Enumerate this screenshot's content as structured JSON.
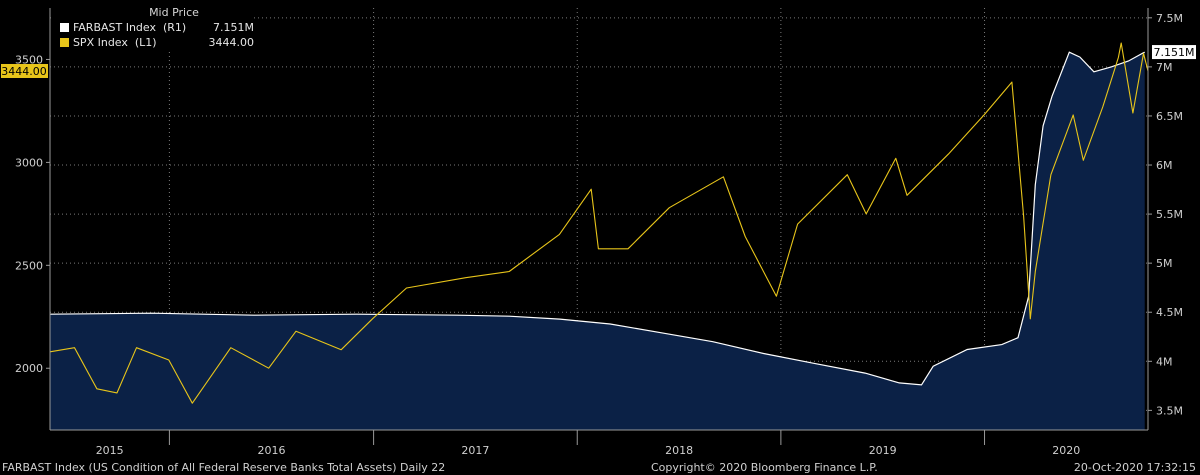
{
  "legend": {
    "header": "Mid Price",
    "items": [
      {
        "label": "FARBAST Index  (R1)",
        "value": "7.151M",
        "color": "#ffffff"
      },
      {
        "label": "SPX Index  (L1)",
        "value": "3444.00",
        "color": "#e8c51a"
      }
    ]
  },
  "footer": {
    "left": "FARBAST Index (US Condition of All Federal Reserve Banks Total Assets)  Daily 22",
    "center": "Copyright© 2020 Bloomberg Finance L.P.",
    "right": "20-Oct-2020 17:32:15"
  },
  "chart_data": {
    "type": "line",
    "x_axis": {
      "tick_labels": [
        "2015",
        "2016",
        "2017",
        "2018",
        "2019",
        "2020"
      ],
      "range": [
        "2015-06-01",
        "2020-10-20"
      ]
    },
    "left_axis": {
      "tick_labels": [
        "2000",
        "2500",
        "3000",
        "3500"
      ],
      "range": [
        1700,
        3750
      ]
    },
    "right_axis": {
      "tick_labels": [
        "3.5M",
        "4M",
        "4.5M",
        "5M",
        "5.5M",
        "6M",
        "6.5M",
        "7M",
        "7.5M"
      ],
      "range": [
        3300000,
        7600000
      ]
    },
    "grid": true,
    "series": [
      {
        "name": "FARBAST Index  (R1)",
        "axis": "right",
        "style": "area",
        "color": "#ffffff",
        "fill": "#0b2146",
        "last_label": "7.151M",
        "points": [
          [
            "2015-06-01",
            4480000
          ],
          [
            "2015-12-01",
            4490000
          ],
          [
            "2016-06-01",
            4470000
          ],
          [
            "2016-12-01",
            4480000
          ],
          [
            "2017-06-01",
            4470000
          ],
          [
            "2017-09-01",
            4460000
          ],
          [
            "2017-12-01",
            4430000
          ],
          [
            "2018-03-01",
            4380000
          ],
          [
            "2018-06-01",
            4290000
          ],
          [
            "2018-09-01",
            4200000
          ],
          [
            "2018-12-01",
            4080000
          ],
          [
            "2019-03-01",
            3980000
          ],
          [
            "2019-06-01",
            3880000
          ],
          [
            "2019-08-01",
            3780000
          ],
          [
            "2019-09-10",
            3760000
          ],
          [
            "2019-10-01",
            3950000
          ],
          [
            "2019-12-01",
            4120000
          ],
          [
            "2020-02-01",
            4170000
          ],
          [
            "2020-03-01",
            4240000
          ],
          [
            "2020-03-20",
            4660000
          ],
          [
            "2020-04-01",
            5800000
          ],
          [
            "2020-04-15",
            6400000
          ],
          [
            "2020-05-01",
            6700000
          ],
          [
            "2020-06-01",
            7150000
          ],
          [
            "2020-06-20",
            7100000
          ],
          [
            "2020-07-15",
            6950000
          ],
          [
            "2020-08-15",
            7000000
          ],
          [
            "2020-09-15",
            7060000
          ],
          [
            "2020-10-14",
            7151000
          ]
        ]
      },
      {
        "name": "SPX Index  (L1)",
        "axis": "left",
        "style": "line",
        "color": "#e8c51a",
        "last_label": "3444.00",
        "points": [
          [
            "2015-06-01",
            2080
          ],
          [
            "2015-07-15",
            2100
          ],
          [
            "2015-08-24",
            1900
          ],
          [
            "2015-09-29",
            1880
          ],
          [
            "2015-11-03",
            2100
          ],
          [
            "2015-12-31",
            2040
          ],
          [
            "2016-02-11",
            1830
          ],
          [
            "2016-04-20",
            2100
          ],
          [
            "2016-06-27",
            2000
          ],
          [
            "2016-08-15",
            2180
          ],
          [
            "2016-11-04",
            2090
          ],
          [
            "2016-12-30",
            2240
          ],
          [
            "2017-03-01",
            2390
          ],
          [
            "2017-06-15",
            2440
          ],
          [
            "2017-09-01",
            2470
          ],
          [
            "2017-11-30",
            2650
          ],
          [
            "2018-01-26",
            2870
          ],
          [
            "2018-02-08",
            2580
          ],
          [
            "2018-04-02",
            2580
          ],
          [
            "2018-06-15",
            2780
          ],
          [
            "2018-09-20",
            2930
          ],
          [
            "2018-10-29",
            2640
          ],
          [
            "2018-12-24",
            2350
          ],
          [
            "2019-01-31",
            2700
          ],
          [
            "2019-04-30",
            2940
          ],
          [
            "2019-06-03",
            2750
          ],
          [
            "2019-07-26",
            3020
          ],
          [
            "2019-08-15",
            2840
          ],
          [
            "2019-10-28",
            3040
          ],
          [
            "2019-12-31",
            3230
          ],
          [
            "2020-02-19",
            3390
          ],
          [
            "2020-03-11",
            2740
          ],
          [
            "2020-03-23",
            2240
          ],
          [
            "2020-04-01",
            2470
          ],
          [
            "2020-04-29",
            2940
          ],
          [
            "2020-06-08",
            3230
          ],
          [
            "2020-06-26",
            3010
          ],
          [
            "2020-07-31",
            3270
          ],
          [
            "2020-08-28",
            3510
          ],
          [
            "2020-09-02",
            3580
          ],
          [
            "2020-09-23",
            3240
          ],
          [
            "2020-10-12",
            3530
          ],
          [
            "2020-10-20",
            3444
          ]
        ]
      }
    ]
  }
}
